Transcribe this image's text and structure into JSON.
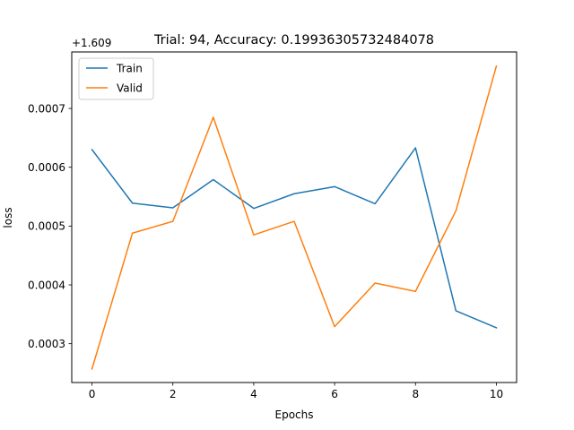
{
  "chart_data": {
    "type": "line",
    "title": "Trial: 94, Accuracy: 0.19936305732484078",
    "xlabel": "Epochs",
    "ylabel": "loss",
    "y_offset_label": "+1.609",
    "x": [
      0,
      1,
      2,
      3,
      4,
      5,
      6,
      7,
      8,
      9,
      10
    ],
    "x_ticks": [
      0,
      2,
      4,
      6,
      8,
      10
    ],
    "x_tick_labels": [
      "0",
      "2",
      "4",
      "6",
      "8",
      "10"
    ],
    "y_ticks": [
      0.0003,
      0.0004,
      0.0005,
      0.0006,
      0.0007
    ],
    "y_tick_labels": [
      "0.0003",
      "0.0004",
      "0.0005",
      "0.0006",
      "0.0007"
    ],
    "xlim": [
      -0.5,
      10.5
    ],
    "ylim": [
      0.000234,
      0.000796
    ],
    "grid": false,
    "legend_position": "upper-left",
    "series": [
      {
        "name": "Train",
        "color": "#1f77b4",
        "values": [
          0.00063,
          0.000539,
          0.000531,
          0.000579,
          0.00053,
          0.000555,
          0.000567,
          0.000538,
          0.000633,
          0.000356,
          0.000327
        ]
      },
      {
        "name": "Valid",
        "color": "#ff7f0e",
        "values": [
          0.000257,
          0.000488,
          0.000508,
          0.000685,
          0.000485,
          0.000508,
          0.000329,
          0.000403,
          0.000389,
          0.000526,
          0.000772
        ]
      }
    ]
  }
}
